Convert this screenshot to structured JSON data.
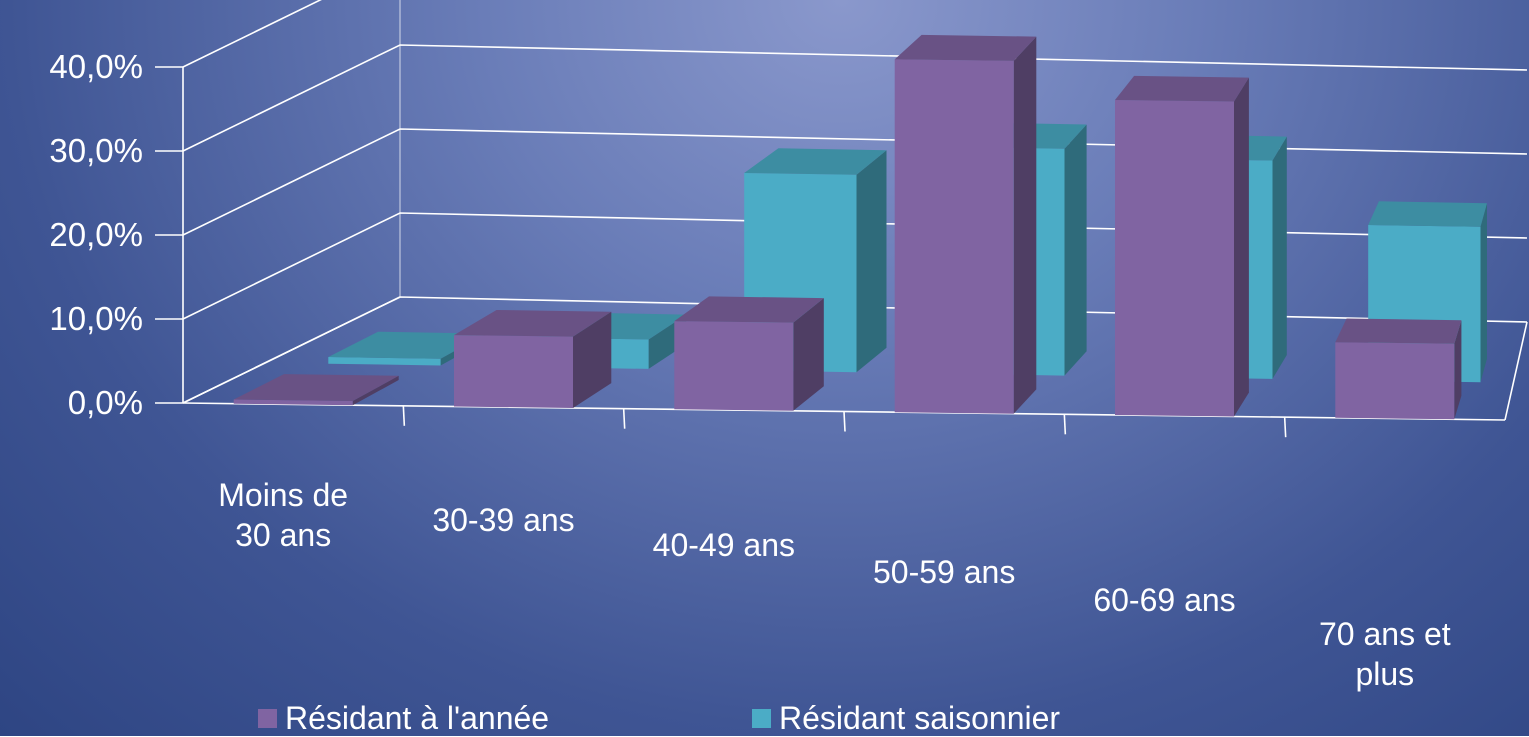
{
  "chart_data": {
    "type": "bar",
    "title": "",
    "xlabel": "",
    "ylabel": "",
    "categories": [
      "Moins de 30 ans",
      "30-39 ans",
      "40-49 ans",
      "50-59 ans",
      "60-69 ans",
      "70 ans et plus"
    ],
    "category_lines": [
      [
        "Moins de",
        "30 ans"
      ],
      [
        "30-39 ans"
      ],
      [
        "40-49 ans"
      ],
      [
        "50-59 ans"
      ],
      [
        "60-69 ans"
      ],
      [
        "70 ans et",
        "plus"
      ]
    ],
    "y_ticks": [
      "0,0%",
      "10,0%",
      "20,0%",
      "30,0%",
      "40,0%"
    ],
    "ylim": [
      0,
      40
    ],
    "grid": true,
    "legend_position": "bottom",
    "series": [
      {
        "name": "Résidant à l'année",
        "color": "#8064a2",
        "values": [
          0.5,
          8.5,
          10.5,
          42.0,
          37.5,
          9.0
        ]
      },
      {
        "name": "Résidant saisonnier",
        "color": "#4bacc6",
        "values": [
          0.8,
          3.5,
          23.5,
          27.0,
          26.0,
          18.5
        ]
      }
    ]
  }
}
